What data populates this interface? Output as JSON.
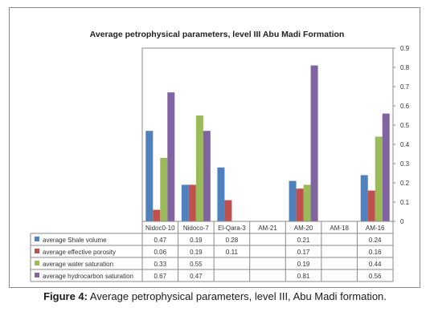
{
  "caption": {
    "label": "Figure 4:",
    "text": " Average petrophysical parameters, level III, Abu Madi formation."
  },
  "chart_data": {
    "type": "bar",
    "title": "Average petrophysical parameters, level III Abu  Madi Formation",
    "categories": [
      "Nidoc0-10",
      "Nidoco-7",
      "El-Qara-3",
      "AM-21",
      "AM-20",
      "AM-18",
      "AM-16"
    ],
    "ylim": [
      0,
      0.9
    ],
    "yticks": [
      "0",
      "0.1",
      "0.2",
      "0.3",
      "0.4",
      "0.5",
      "0.6",
      "0.7",
      "0.8",
      "0.9"
    ],
    "yaxis_side": "right",
    "grid": false,
    "legend": "data-table-below",
    "series": [
      {
        "name": "average Shale volume",
        "color": "#4f81bd",
        "values": [
          0.47,
          0.19,
          0.28,
          null,
          0.21,
          null,
          0.24
        ],
        "labels": [
          "0.47",
          "0.19",
          "0.28",
          "",
          "0.21",
          "",
          "0.24"
        ]
      },
      {
        "name": "average effective porosity",
        "color": "#c0504d",
        "values": [
          0.06,
          0.19,
          0.11,
          null,
          0.17,
          null,
          0.16
        ],
        "labels": [
          "0.06",
          "0.19",
          "0.11",
          "",
          "0.17",
          "",
          "0.16"
        ]
      },
      {
        "name": "average water saturation",
        "color": "#9bbb59",
        "values": [
          0.33,
          0.55,
          null,
          null,
          0.19,
          null,
          0.44
        ],
        "labels": [
          "0.33",
          "0.55",
          "",
          "",
          "0.19",
          "",
          "0.44"
        ]
      },
      {
        "name": "average hydrocarbon saturation",
        "color": "#8064a2",
        "values": [
          0.67,
          0.47,
          null,
          null,
          0.81,
          null,
          0.56
        ],
        "labels": [
          "0.67",
          "0.47",
          "",
          "",
          "0.81",
          "",
          "0.56"
        ]
      }
    ]
  }
}
